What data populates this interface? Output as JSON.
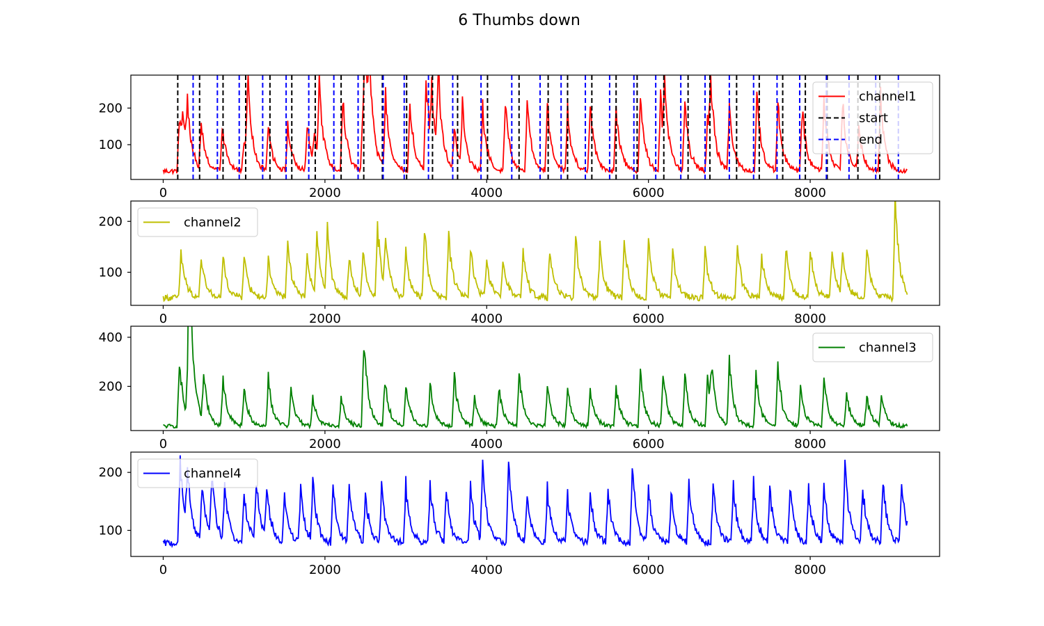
{
  "figure": {
    "title": "6 Thumbs down"
  },
  "chart_data": [
    {
      "type": "line",
      "legend_position": "upper-right",
      "xlim": [
        -400,
        9600
      ],
      "ylim": [
        5,
        290
      ],
      "xticks": [
        0,
        2000,
        4000,
        6000,
        8000
      ],
      "yticks": [
        100,
        200
      ],
      "grid": false,
      "series": [
        {
          "name": "channel1",
          "color": "#ff0000",
          "style": "solid",
          "base": 28,
          "noise": 7,
          "peaks": [
            [
              200,
              180
            ],
            [
              245,
              130
            ],
            [
              300,
              160
            ],
            [
              470,
              148
            ],
            [
              730,
              150
            ],
            [
              1000,
              120
            ],
            [
              1045,
              245
            ],
            [
              1300,
              155
            ],
            [
              1540,
              150
            ],
            [
              1780,
              150
            ],
            [
              1870,
              110
            ],
            [
              1930,
              240
            ],
            [
              2220,
              235
            ],
            [
              2470,
              220
            ],
            [
              2500,
              270
            ],
            [
              2550,
              210
            ],
            [
              2750,
              245
            ],
            [
              3050,
              210
            ],
            [
              3250,
              280
            ],
            [
              3320,
              195
            ],
            [
              3400,
              260
            ],
            [
              3600,
              140
            ],
            [
              3700,
              190
            ],
            [
              3950,
              195
            ],
            [
              4230,
              220
            ],
            [
              4500,
              220
            ],
            [
              4750,
              215
            ],
            [
              5000,
              200
            ],
            [
              5280,
              225
            ],
            [
              5600,
              215
            ],
            [
              5900,
              240
            ],
            [
              6150,
              225
            ],
            [
              6200,
              200
            ],
            [
              6450,
              230
            ],
            [
              6730,
              175
            ],
            [
              6770,
              215
            ],
            [
              7000,
              200
            ],
            [
              7340,
              240
            ],
            [
              7600,
              220
            ],
            [
              7900,
              200
            ],
            [
              8170,
              230
            ],
            [
              8400,
              220
            ],
            [
              8600,
              145
            ],
            [
              8870,
              230
            ]
          ]
        },
        {
          "name": "start",
          "color": "#000000",
          "style": "dashed",
          "vlines": [
            180,
            450,
            740,
            1020,
            1320,
            1590,
            1880,
            2200,
            2480,
            2710,
            3010,
            3330,
            3640,
            4010,
            4400,
            4760,
            5000,
            5300,
            5600,
            5860,
            6190,
            6490,
            6760,
            7090,
            7370,
            7660,
            7940,
            8210,
            8590,
            8860
          ]
        },
        {
          "name": "end",
          "color": "#0000ff",
          "style": "dashed",
          "vlines": [
            370,
            670,
            940,
            1230,
            1520,
            1800,
            2110,
            2410,
            2720,
            2980,
            3280,
            3580,
            3930,
            4310,
            4660,
            4920,
            5220,
            5520,
            5820,
            6090,
            6400,
            6700,
            7000,
            7300,
            7590,
            7870,
            8200,
            8480,
            8810,
            9090
          ]
        }
      ]
    },
    {
      "type": "line",
      "legend_position": "upper-left",
      "xlim": [
        -400,
        9600
      ],
      "ylim": [
        35,
        240
      ],
      "xticks": [
        0,
        2000,
        4000,
        6000,
        8000
      ],
      "yticks": [
        100,
        200
      ],
      "grid": false,
      "series": [
        {
          "name": "channel2",
          "color": "#bfbf00",
          "style": "solid",
          "base": 50,
          "noise": 6,
          "peaks": [
            [
              220,
              140
            ],
            [
              470,
              130
            ],
            [
              740,
              125
            ],
            [
              1000,
              130
            ],
            [
              1300,
              120
            ],
            [
              1540,
              165
            ],
            [
              1780,
              130
            ],
            [
              1900,
              160
            ],
            [
              2030,
              170
            ],
            [
              2300,
              130
            ],
            [
              2470,
              135
            ],
            [
              2650,
              190
            ],
            [
              2750,
              150
            ],
            [
              3000,
              140
            ],
            [
              3230,
              185
            ],
            [
              3530,
              175
            ],
            [
              3800,
              150
            ],
            [
              4000,
              120
            ],
            [
              4200,
              125
            ],
            [
              4450,
              140
            ],
            [
              4780,
              155
            ],
            [
              5100,
              165
            ],
            [
              5400,
              150
            ],
            [
              5700,
              160
            ],
            [
              6000,
              165
            ],
            [
              6300,
              140
            ],
            [
              6700,
              145
            ],
            [
              7100,
              150
            ],
            [
              7400,
              135
            ],
            [
              7700,
              145
            ],
            [
              8000,
              145
            ],
            [
              8270,
              150
            ],
            [
              8400,
              130
            ],
            [
              8700,
              145
            ],
            [
              9050,
              235
            ]
          ]
        }
      ]
    },
    {
      "type": "line",
      "legend_position": "upper-right",
      "xlim": [
        -400,
        9600
      ],
      "ylim": [
        20,
        445
      ],
      "xticks": [
        0,
        2000,
        4000,
        6000,
        8000
      ],
      "yticks": [
        200,
        400
      ],
      "grid": false,
      "series": [
        {
          "name": "channel3",
          "color": "#008000",
          "style": "solid",
          "base": 38,
          "noise": 8,
          "peaks": [
            [
              200,
              300
            ],
            [
              310,
              360
            ],
            [
              330,
              425
            ],
            [
              500,
              220
            ],
            [
              740,
              230
            ],
            [
              1000,
              190
            ],
            [
              1300,
              230
            ],
            [
              1580,
              195
            ],
            [
              1850,
              160
            ],
            [
              2200,
              160
            ],
            [
              2480,
              405
            ],
            [
              2740,
              230
            ],
            [
              3000,
              210
            ],
            [
              3300,
              205
            ],
            [
              3600,
              240
            ],
            [
              3850,
              150
            ],
            [
              4150,
              200
            ],
            [
              4400,
              260
            ],
            [
              4750,
              200
            ],
            [
              5000,
              195
            ],
            [
              5280,
              200
            ],
            [
              5600,
              200
            ],
            [
              5900,
              265
            ],
            [
              6180,
              255
            ],
            [
              6450,
              240
            ],
            [
              6730,
              240
            ],
            [
              6780,
              210
            ],
            [
              7000,
              310
            ],
            [
              7330,
              250
            ],
            [
              7600,
              295
            ],
            [
              7880,
              195
            ],
            [
              8170,
              225
            ],
            [
              8450,
              175
            ],
            [
              8700,
              165
            ],
            [
              8880,
              160
            ]
          ]
        }
      ]
    },
    {
      "type": "line",
      "legend_position": "upper-left",
      "xlim": [
        -400,
        9600
      ],
      "ylim": [
        55,
        235
      ],
      "xticks": [
        0,
        2000,
        4000,
        6000,
        8000
      ],
      "yticks": [
        100,
        200
      ],
      "grid": false,
      "series": [
        {
          "name": "channel4",
          "color": "#0000ff",
          "style": "solid",
          "base": 78,
          "noise": 6,
          "peaks": [
            [
              210,
              225
            ],
            [
              300,
              180
            ],
            [
              480,
              175
            ],
            [
              600,
              185
            ],
            [
              760,
              170
            ],
            [
              1000,
              165
            ],
            [
              1150,
              180
            ],
            [
              1280,
              170
            ],
            [
              1500,
              160
            ],
            [
              1700,
              170
            ],
            [
              1850,
              175
            ],
            [
              2100,
              175
            ],
            [
              2300,
              180
            ],
            [
              2500,
              160
            ],
            [
              2700,
              175
            ],
            [
              3000,
              175
            ],
            [
              3300,
              180
            ],
            [
              3500,
              170
            ],
            [
              3800,
              175
            ],
            [
              3950,
              210
            ],
            [
              4270,
              225
            ],
            [
              4500,
              160
            ],
            [
              4750,
              170
            ],
            [
              5000,
              165
            ],
            [
              5280,
              160
            ],
            [
              5500,
              170
            ],
            [
              5800,
              215
            ],
            [
              6000,
              170
            ],
            [
              6280,
              160
            ],
            [
              6500,
              180
            ],
            [
              6800,
              185
            ],
            [
              7050,
              175
            ],
            [
              7300,
              180
            ],
            [
              7500,
              165
            ],
            [
              7750,
              170
            ],
            [
              7980,
              170
            ],
            [
              8170,
              170
            ],
            [
              8430,
              215
            ],
            [
              8650,
              175
            ],
            [
              8900,
              190
            ],
            [
              9130,
              185
            ]
          ]
        }
      ]
    }
  ]
}
